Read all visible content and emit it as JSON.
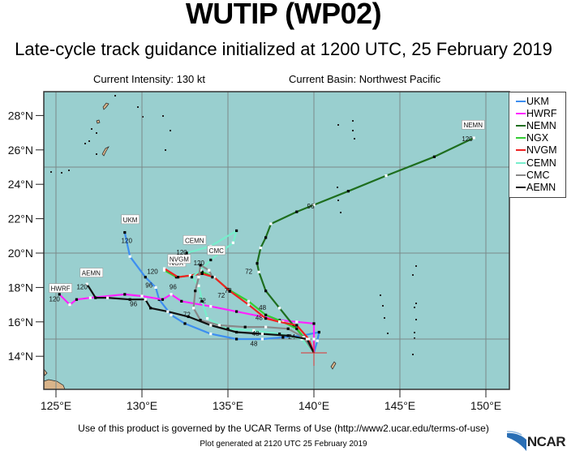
{
  "header": {
    "title": "WUTIP (WP02)",
    "subtitle": "Late-cycle track guidance initialized at 1200 UTC, 25 February 2019",
    "current_intensity": "Current Intensity: 130 kt",
    "current_basin": "Current Basin: Northwest Pacific"
  },
  "footer": {
    "terms": "Use of this product is governed by the UCAR Terms of Use (http://www2.ucar.edu/terms-of-use)",
    "generated": "Plot generated at 2120 UTC   25 February 2019",
    "logo": "NCAR"
  },
  "colors": {
    "ocean": "#99cfcf",
    "land": "#d9b48a",
    "grid": "#7a8a8a",
    "frame": "#333333",
    "current_position": "#e03030"
  },
  "chart_data": {
    "type": "map-track",
    "title": "WUTIP (WP02)",
    "subtitle": "Late-cycle track guidance initialized at 1200 UTC, 25 February 2019",
    "lon_ticks": [
      "125°E",
      "130°E",
      "135°E",
      "140°E",
      "145°E",
      "150°E"
    ],
    "lat_ticks": [
      "14°N",
      "16°N",
      "18°N",
      "20°N",
      "22°N",
      "24°N",
      "26°N",
      "28°N"
    ],
    "lon_range": [
      124.3,
      151.3
    ],
    "lat_range": [
      12.2,
      29.5
    ],
    "grid": {
      "lon": [
        125,
        130,
        135,
        140,
        145,
        150
      ],
      "lat": [
        15,
        20,
        25
      ]
    },
    "legend_position": "right",
    "current_position": {
      "lon": 140.0,
      "lat": 14.2
    },
    "series": [
      {
        "name": "UKM",
        "color": "#3d8ef0",
        "points": [
          [
            140.0,
            14.2
          ],
          [
            140.2,
            14.9
          ],
          [
            140.3,
            15.4
          ],
          [
            139.3,
            15.2
          ],
          [
            138.2,
            15.1
          ],
          [
            137.0,
            15.0
          ],
          [
            135.5,
            15.0
          ],
          [
            134.0,
            15.3
          ],
          [
            132.5,
            15.9
          ],
          [
            131.7,
            16.4
          ],
          [
            131.0,
            17.3
          ],
          [
            130.8,
            18.0
          ],
          [
            130.2,
            18.6
          ],
          [
            129.3,
            19.8
          ],
          [
            129.0,
            21.2
          ]
        ],
        "labels": [
          {
            "t": "24",
            "lon": 138.5,
            "lat": 15.0
          },
          {
            "t": "48",
            "lon": 136.3,
            "lat": 14.6
          },
          {
            "t": "96",
            "lon": 130.2,
            "lat": 18.0
          },
          {
            "t": "120",
            "lon": 128.8,
            "lat": 20.6
          }
        ],
        "end_label": {
          "t": "UKM",
          "lon": 128.9,
          "lat": 21.8
        }
      },
      {
        "name": "HWRF",
        "color": "#ff22ff",
        "points": [
          [
            140.0,
            14.2
          ],
          [
            140.0,
            15.0
          ],
          [
            140.0,
            15.9
          ],
          [
            139.0,
            16.0
          ],
          [
            138.0,
            16.1
          ],
          [
            137.0,
            16.3
          ],
          [
            135.5,
            16.6
          ],
          [
            134.0,
            16.9
          ],
          [
            132.3,
            17.2
          ],
          [
            131.7,
            17.6
          ],
          [
            131.2,
            17.3
          ],
          [
            130.0,
            17.5
          ],
          [
            129.0,
            17.6
          ],
          [
            127.0,
            17.4
          ],
          [
            126.2,
            17.3
          ],
          [
            125.8,
            17.0
          ],
          [
            125.2,
            17.6
          ]
        ],
        "labels": [
          {
            "t": "120",
            "lon": 124.6,
            "lat": 17.2
          }
        ],
        "end_label": {
          "t": "HWRF",
          "lon": 124.7,
          "lat": 17.8
        }
      },
      {
        "name": "NEMN",
        "color": "#1e6e1e",
        "points": [
          [
            140.0,
            14.2
          ],
          [
            139.5,
            15.0
          ],
          [
            138.8,
            15.8
          ],
          [
            138.0,
            16.8
          ],
          [
            137.2,
            17.8
          ],
          [
            136.8,
            18.9
          ],
          [
            136.7,
            19.4
          ],
          [
            136.9,
            20.3
          ],
          [
            137.2,
            20.9
          ],
          [
            137.5,
            21.7
          ],
          [
            139.0,
            22.4
          ],
          [
            140.0,
            22.8
          ],
          [
            142.0,
            23.6
          ],
          [
            144.2,
            24.5
          ],
          [
            147.0,
            25.6
          ],
          [
            149.3,
            26.7
          ]
        ],
        "labels": [
          {
            "t": "48",
            "lon": 136.8,
            "lat": 16.7
          },
          {
            "t": "72",
            "lon": 136.0,
            "lat": 18.8
          },
          {
            "t": "96",
            "lon": 139.6,
            "lat": 22.6
          },
          {
            "t": "120",
            "lon": 148.6,
            "lat": 26.5
          }
        ],
        "end_label": {
          "t": "NEMN",
          "lon": 148.7,
          "lat": 27.3
        }
      },
      {
        "name": "NGX",
        "color": "#33cc33",
        "points": [
          [
            140.0,
            14.2
          ],
          [
            139.5,
            15.0
          ],
          [
            139.0,
            15.6
          ],
          [
            138.2,
            16.0
          ],
          [
            137.2,
            16.4
          ],
          [
            136.2,
            17.2
          ],
          [
            135.0,
            17.9
          ],
          [
            134.2,
            18.6
          ],
          [
            133.5,
            18.9
          ],
          [
            132.9,
            18.7
          ],
          [
            132.0,
            18.6
          ],
          [
            131.3,
            19.0
          ]
        ],
        "labels": [
          {
            "t": "48",
            "lon": 136.6,
            "lat": 16.1
          }
        ],
        "end_label": {
          "t": "NGX",
          "lon": 131.6,
          "lat": 19.3
        }
      },
      {
        "name": "NVGM",
        "color": "#ee2222",
        "points": [
          [
            140.0,
            14.2
          ],
          [
            139.7,
            15.0
          ],
          [
            139.0,
            15.8
          ],
          [
            138.0,
            16.0
          ],
          [
            137.2,
            16.2
          ],
          [
            136.2,
            17.0
          ],
          [
            135.1,
            17.8
          ],
          [
            134.2,
            18.6
          ],
          [
            133.5,
            18.8
          ],
          [
            132.8,
            18.7
          ],
          [
            132.1,
            18.6
          ],
          [
            131.3,
            19.1
          ]
        ],
        "labels": [
          {
            "t": "120",
            "lon": 130.3,
            "lat": 18.8
          },
          {
            "t": "72",
            "lon": 134.8,
            "lat": 17.7
          }
        ],
        "end_label": {
          "t": "NVGM",
          "lon": 131.6,
          "lat": 19.5
        }
      },
      {
        "name": "CEMN",
        "color": "#77eecc",
        "points": [
          [
            140.0,
            14.2
          ],
          [
            139.3,
            15.0
          ],
          [
            138.0,
            15.3
          ],
          [
            136.5,
            15.5
          ],
          [
            135.0,
            15.6
          ],
          [
            133.8,
            16.2
          ],
          [
            133.5,
            17.2
          ],
          [
            133.3,
            18.1
          ],
          [
            132.9,
            18.6
          ],
          [
            133.4,
            19.0
          ],
          [
            134.0,
            19.6
          ],
          [
            135.3,
            20.6
          ],
          [
            135.5,
            21.3
          ],
          [
            134.0,
            20.4
          ],
          [
            132.6,
            20.0
          ]
        ],
        "labels": [
          {
            "t": "72",
            "lon": 133.3,
            "lat": 17.1
          },
          {
            "t": "96",
            "lon": 131.6,
            "lat": 17.9
          },
          {
            "t": "120",
            "lon": 132.0,
            "lat": 19.9
          }
        ],
        "end_label": {
          "t": "CEMN",
          "lon": 132.5,
          "lat": 20.6
        }
      },
      {
        "name": "CMC",
        "color": "#888888",
        "points": [
          [
            140.0,
            14.2
          ],
          [
            139.4,
            15.1
          ],
          [
            138.5,
            15.6
          ],
          [
            137.2,
            15.7
          ],
          [
            136.0,
            15.7
          ],
          [
            134.5,
            15.8
          ],
          [
            133.4,
            16.1
          ],
          [
            133.0,
            16.8
          ],
          [
            133.1,
            17.8
          ],
          [
            133.3,
            18.6
          ],
          [
            133.4,
            19.3
          ],
          [
            133.9,
            19.0
          ],
          [
            134.1,
            18.6
          ]
        ],
        "labels": [
          {
            "t": "48",
            "lon": 136.4,
            "lat": 15.2
          },
          {
            "t": "72",
            "lon": 134.4,
            "lat": 17.4
          },
          {
            "t": "120",
            "lon": 133.0,
            "lat": 19.3
          }
        ],
        "end_label": {
          "t": "CMC",
          "lon": 133.9,
          "lat": 20.0
        }
      },
      {
        "name": "AEMN",
        "color": "#111111",
        "points": [
          [
            140.0,
            14.2
          ],
          [
            139.6,
            15.0
          ],
          [
            138.5,
            15.2
          ],
          [
            137.0,
            15.3
          ],
          [
            135.5,
            15.4
          ],
          [
            134.0,
            15.8
          ],
          [
            132.7,
            16.3
          ],
          [
            131.5,
            16.6
          ],
          [
            130.5,
            16.8
          ],
          [
            130.2,
            17.3
          ],
          [
            129.3,
            17.3
          ],
          [
            128.0,
            17.4
          ],
          [
            127.3,
            17.4
          ],
          [
            126.8,
            18.2
          ]
        ],
        "labels": [
          {
            "t": "96",
            "lon": 129.3,
            "lat": 16.9
          },
          {
            "t": "72",
            "lon": 132.4,
            "lat": 16.3
          },
          {
            "t": "120",
            "lon": 126.2,
            "lat": 17.9
          }
        ],
        "end_label": {
          "t": "AEMN",
          "lon": 126.5,
          "lat": 18.7
        }
      }
    ],
    "legend": [
      "UKM",
      "HWRF",
      "NEMN",
      "NGX",
      "NVGM",
      "CEMN",
      "CMC",
      "AEMN"
    ]
  }
}
